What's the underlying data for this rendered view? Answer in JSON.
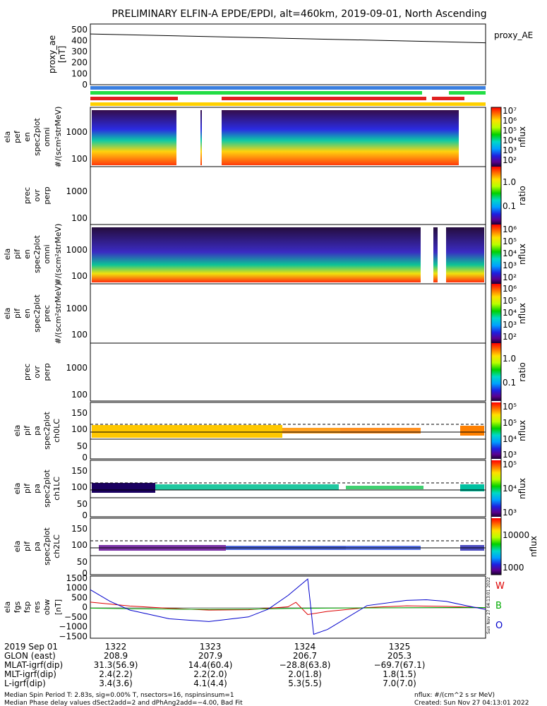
{
  "title": "PRELIMINARY ELFIN-A EPDE/EPDI, alt=460km, 2019-09-01, North Ascending",
  "chart_data": [
    {
      "type": "line",
      "ylabel": [
        "proxy_ae",
        "[nT]"
      ],
      "legend": "proxy_AE",
      "ylim": [
        0,
        550
      ],
      "yticks": [
        "500",
        "400",
        "300",
        "200",
        "100",
        "0"
      ],
      "series": [
        {
          "name": "proxy_AE",
          "x": [
            "1321:52",
            "1326:45"
          ],
          "values": [
            460,
            380
          ]
        }
      ]
    },
    {
      "type": "bar",
      "description_bars": "orbit/region indicator bars",
      "colors": [
        "#3a7fe0",
        "#22dd44",
        "#e02020",
        "#ffd000"
      ]
    },
    {
      "type": "heatmap",
      "ylabel": [
        "ela",
        "pef",
        "en",
        "spec2plot",
        "omni",
        "#/(scm²strMeV)"
      ],
      "ytick_labels": [
        "1000",
        "100"
      ],
      "colorbar": {
        "label": "nflux",
        "ticks": [
          "10⁷",
          "10⁶",
          "10⁵",
          "10⁴",
          "10³",
          "10²"
        ]
      }
    },
    {
      "type": "heatmap",
      "ylabel": [
        "prec",
        "ovr",
        "perp"
      ],
      "ytick_labels": [
        "1000",
        "100"
      ],
      "colorbar": {
        "label": "ratio",
        "ticks": [
          "1.0",
          "0.1"
        ]
      }
    },
    {
      "type": "heatmap",
      "ylabel": [
        "ela",
        "pif",
        "en",
        "spec2plot",
        "omni",
        "#/(scm²strMeV)"
      ],
      "ytick_labels": [
        "1000",
        "100"
      ],
      "colorbar": {
        "label": "nflux",
        "ticks": [
          "10⁶",
          "10⁵",
          "10⁴",
          "10³",
          "10²"
        ]
      }
    },
    {
      "type": "heatmap",
      "ylabel": [
        "ela",
        "pif",
        "en",
        "spec2plot",
        "prec",
        "#/(scm²strMeV)"
      ],
      "ytick_labels": [
        "1000",
        "100"
      ],
      "colorbar": {
        "label": "nflux",
        "ticks": [
          "10⁶",
          "10⁵",
          "10⁴",
          "10³",
          "10²"
        ]
      }
    },
    {
      "type": "heatmap",
      "ylabel": [
        "prec",
        "ovr",
        "perp"
      ],
      "ytick_labels": [
        "1000",
        "100"
      ],
      "colorbar": {
        "label": "ratio",
        "ticks": [
          "1.0",
          "0.1"
        ]
      }
    },
    {
      "type": "heatmap",
      "ylabel": [
        "ela",
        "pif",
        "pa",
        "spec2plot",
        "ch0LC"
      ],
      "ytick_labels": [
        "150",
        "100",
        "50",
        "0"
      ],
      "colorbar": {
        "label": "nflux",
        "ticks": [
          "10⁵",
          "10⁵",
          "10⁴",
          "10³"
        ]
      }
    },
    {
      "type": "heatmap",
      "ylabel": [
        "ela",
        "pif",
        "pa",
        "spec2plot",
        "ch1LC"
      ],
      "ytick_labels": [
        "150",
        "100",
        "50",
        "0"
      ],
      "colorbar": {
        "label": "nflux",
        "ticks": [
          "10⁵",
          "10⁴",
          "10³"
        ]
      }
    },
    {
      "type": "heatmap",
      "ylabel": [
        "ela",
        "pif",
        "pa",
        "spec2plot",
        "ch2LC"
      ],
      "ytick_labels": [
        "150",
        "100",
        "50",
        "0"
      ],
      "colorbar": {
        "label": "nflux",
        "ticks": [
          "10000",
          "1000"
        ]
      }
    },
    {
      "type": "line",
      "ylabel": [
        "ela",
        "fgs",
        "fsp",
        "res",
        "obw",
        "[nT]"
      ],
      "ylim": [
        -1600,
        1600
      ],
      "yticks": [
        "1500",
        "1000",
        "500",
        "0",
        "−500",
        "−1000",
        "−1500"
      ],
      "legend": [
        "W",
        "B",
        "O"
      ],
      "series": [
        {
          "name": "W",
          "color": "#dd0000",
          "x": [
            0,
            0.05,
            0.1,
            0.2,
            0.3,
            0.4,
            0.5,
            0.52,
            0.55,
            0.6,
            0.7,
            0.8,
            0.9,
            1.0
          ],
          "values": [
            260,
            160,
            60,
            -60,
            -150,
            -130,
            20,
            250,
            -380,
            -220,
            -20,
            70,
            40,
            -30
          ]
        },
        {
          "name": "B",
          "color": "#00aa00",
          "x": [
            0,
            0.1,
            0.2,
            0.3,
            0.4,
            0.5,
            0.55,
            0.6,
            0.7,
            0.8,
            0.9,
            1.0
          ],
          "values": [
            -50,
            -80,
            -100,
            -110,
            -100,
            -70,
            -60,
            -50,
            -40,
            -30,
            -20,
            -20
          ]
        },
        {
          "name": "O",
          "color": "#0000cc",
          "x": [
            0,
            0.05,
            0.1,
            0.2,
            0.3,
            0.4,
            0.45,
            0.5,
            0.55,
            0.565,
            0.6,
            0.7,
            0.8,
            0.85,
            0.9,
            0.95,
            1.0
          ],
          "values": [
            900,
            300,
            -150,
            -600,
            -740,
            -500,
            -100,
            600,
            1450,
            -1400,
            -1150,
            80,
            350,
            380,
            300,
            80,
            -120
          ]
        }
      ]
    }
  ],
  "time_axis": {
    "rows": [
      {
        "label": "2019 Sep 01",
        "values": [
          "1322",
          "1323",
          "1324",
          "1325"
        ]
      },
      {
        "label": "GLON (east)",
        "values": [
          "208.9",
          "207.9",
          "206.7",
          "205.3"
        ]
      },
      {
        "label": "MLAT-igrf(dip)",
        "values": [
          "31.3(56.9)",
          "14.4(60.4)",
          "−28.8(63.8)",
          "−69.7(67.1)"
        ]
      },
      {
        "label": "MLT-igrf(dip)",
        "values": [
          "2.4(2.2)",
          "2.2(2.0)",
          "2.0(1.8)",
          "1.8(1.5)"
        ]
      },
      {
        "label": "L-igrf(dip)",
        "values": [
          "3.4(3.6)",
          "4.1(4.4)",
          "5.3(5.5)",
          "7.0(7.0)"
        ]
      }
    ]
  },
  "footer": {
    "line1": "Median Spin Period T: 2.83s, sig=0.00% T, nsectors=16, nspinsinsum=1",
    "line2": "Median Phase delay values dSect2add=2 and dPhAng2add=−4.00, Bad Fit",
    "units": "nflux: #/(cm^2 s sr MeV)",
    "created": "Created: Sun Nov 27 04:13:01 2022",
    "vertical_stamp": "Sun Nov 27 04:13:01 2022"
  }
}
